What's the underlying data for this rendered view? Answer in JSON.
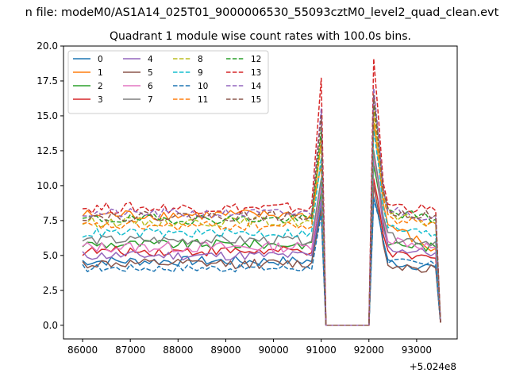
{
  "chart_data": {
    "type": "line",
    "suptitle": "n file: modeM0/AS1A14_025T01_9000006530_55093cztM0_level2_quad_clean.evt",
    "title": "Quadrant 1 module wise count rates with 100.0s bins.",
    "xlabel": "",
    "ylabel": "",
    "x_offset_label": "+5.024e8",
    "xlim": [
      85600,
      93850
    ],
    "ylim": [
      -0.98,
      20.0
    ],
    "xticks": [
      86000,
      87000,
      88000,
      89000,
      90000,
      91000,
      92000,
      93000
    ],
    "xtick_labels": [
      "86000",
      "87000",
      "88000",
      "89000",
      "90000",
      "91000",
      "92000",
      "93000"
    ],
    "yticks": [
      0.0,
      2.5,
      5.0,
      7.5,
      10.0,
      12.5,
      15.0,
      17.5,
      20.0
    ],
    "ytick_labels": [
      "0.0",
      "2.5",
      "5.0",
      "7.5",
      "10.0",
      "12.5",
      "15.0",
      "17.5",
      "20.0"
    ],
    "legend_position": "top-left",
    "legend_columns": 4,
    "gap_segment": {
      "from_x": 91100,
      "to_x": 92000,
      "y": 0.0
    },
    "series": [
      {
        "name": "0",
        "color": "#1f77b4",
        "dash": "solid",
        "base": 4.6,
        "peak1": 8.5,
        "peak2": 9.2,
        "post": 4.5,
        "end": 4.2,
        "noise": 0.35
      },
      {
        "name": "1",
        "color": "#ff7f0e",
        "dash": "solid",
        "base": 7.9,
        "peak1": 11.5,
        "peak2": 14.5,
        "post": 7.2,
        "end": 5.5,
        "noise": 0.4
      },
      {
        "name": "2",
        "color": "#2ca02c",
        "dash": "solid",
        "base": 5.8,
        "peak1": 9.5,
        "peak2": 11.5,
        "post": 5.9,
        "end": 5.6,
        "noise": 0.35
      },
      {
        "name": "3",
        "color": "#d62728",
        "dash": "solid",
        "base": 5.3,
        "peak1": 9.0,
        "peak2": 10.5,
        "post": 5.0,
        "end": 4.8,
        "noise": 0.35
      },
      {
        "name": "4",
        "color": "#9467bd",
        "dash": "solid",
        "base": 5.0,
        "peak1": 9.0,
        "peak2": 12.5,
        "post": 5.5,
        "end": 5.2,
        "noise": 0.35
      },
      {
        "name": "5",
        "color": "#8c564b",
        "dash": "solid",
        "base": 4.4,
        "peak1": 8.2,
        "peak2": 10.0,
        "post": 4.3,
        "end": 4.1,
        "noise": 0.35
      },
      {
        "name": "6",
        "color": "#e377c2",
        "dash": "solid",
        "base": 5.6,
        "peak1": 10.0,
        "peak2": 12.0,
        "post": 6.2,
        "end": 5.6,
        "noise": 0.4
      },
      {
        "name": "7",
        "color": "#7f7f7f",
        "dash": "solid",
        "base": 6.1,
        "peak1": 10.5,
        "peak2": 12.5,
        "post": 6.3,
        "end": 6.0,
        "noise": 0.35
      },
      {
        "name": "8",
        "color": "#bcbd22",
        "dash": "dashed",
        "base": 7.4,
        "peak1": 13.0,
        "peak2": 15.0,
        "post": 7.8,
        "end": 7.3,
        "noise": 0.35
      },
      {
        "name": "9",
        "color": "#17becf",
        "dash": "dashed",
        "base": 6.6,
        "peak1": 12.0,
        "peak2": 14.0,
        "post": 7.0,
        "end": 6.5,
        "noise": 0.35
      },
      {
        "name": "10",
        "color": "#1f77b4",
        "dash": "dashed",
        "base": 4.1,
        "peak1": 7.9,
        "peak2": 9.0,
        "post": 4.6,
        "end": 4.3,
        "noise": 0.3
      },
      {
        "name": "11",
        "color": "#ff7f0e",
        "dash": "dashed",
        "base": 7.1,
        "peak1": 13.5,
        "peak2": 15.5,
        "post": 7.6,
        "end": 7.3,
        "noise": 0.35
      },
      {
        "name": "12",
        "color": "#2ca02c",
        "dash": "dashed",
        "base": 7.6,
        "peak1": 14.0,
        "peak2": 16.0,
        "post": 8.2,
        "end": 7.6,
        "noise": 0.35
      },
      {
        "name": "13",
        "color": "#d62728",
        "dash": "dashed",
        "base": 8.4,
        "peak1": 17.7,
        "peak2": 19.1,
        "post": 8.7,
        "end": 8.2,
        "noise": 0.4
      },
      {
        "name": "14",
        "color": "#9467bd",
        "dash": "dashed",
        "base": 8.0,
        "peak1": 15.5,
        "peak2": 17.0,
        "post": 8.3,
        "end": 7.7,
        "noise": 0.35
      },
      {
        "name": "15",
        "color": "#8c564b",
        "dash": "dashed",
        "base": 7.8,
        "peak1": 15.0,
        "peak2": 16.5,
        "post": 8.1,
        "end": 7.9,
        "noise": 0.35
      }
    ]
  }
}
